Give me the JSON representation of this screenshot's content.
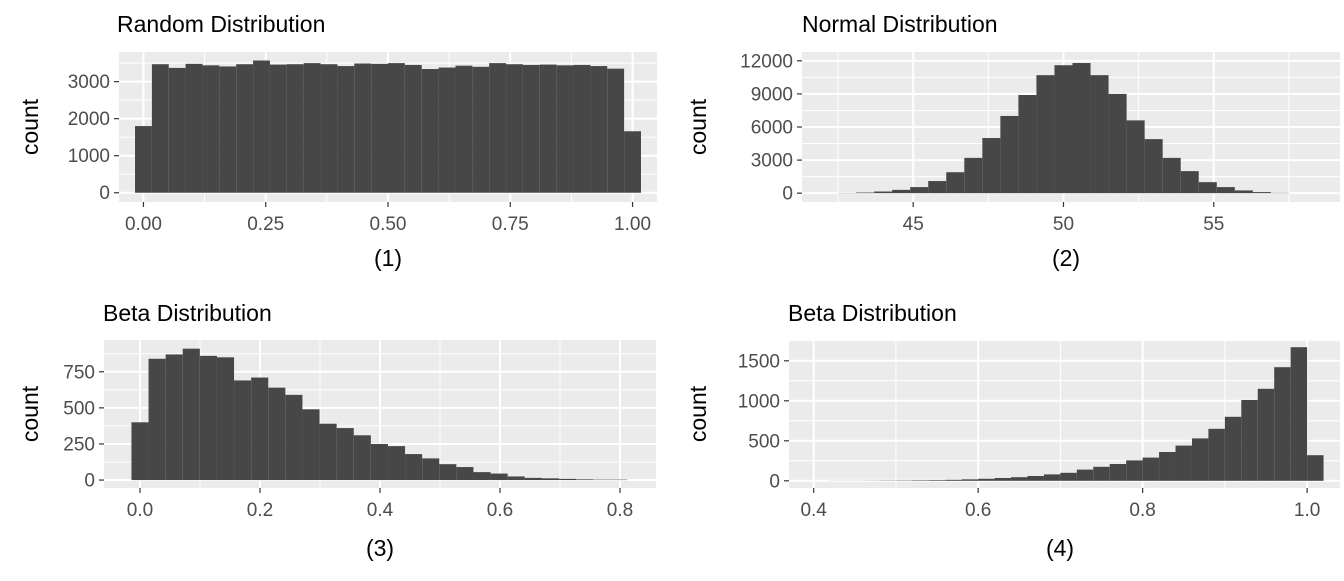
{
  "chart_data": [
    {
      "type": "bar",
      "title": "Random Distribution",
      "xlabel": "(1)",
      "ylabel": "count",
      "xlim": [
        -0.05,
        1.05
      ],
      "ylim": [
        -250,
        3800
      ],
      "xticks": [
        0.0,
        0.25,
        0.5,
        0.75,
        1.0
      ],
      "xtick_labels": [
        "0.00",
        "0.25",
        "0.50",
        "0.75",
        "1.00"
      ],
      "yticks": [
        0,
        1000,
        2000,
        3000
      ],
      "ytick_labels": [
        "0",
        "1000",
        "2000",
        "3000"
      ],
      "grid": true,
      "binwidth": 0.0345,
      "x": [
        0.0,
        0.0345,
        0.069,
        0.1034,
        0.1379,
        0.1724,
        0.2069,
        0.2414,
        0.2759,
        0.3103,
        0.3448,
        0.3793,
        0.4138,
        0.4483,
        0.4828,
        0.5172,
        0.5517,
        0.5862,
        0.6207,
        0.6552,
        0.6897,
        0.7241,
        0.7586,
        0.7931,
        0.8276,
        0.8621,
        0.8966,
        0.931,
        0.9655,
        1.0
      ],
      "values": [
        1800,
        3470,
        3370,
        3480,
        3440,
        3410,
        3470,
        3570,
        3460,
        3470,
        3500,
        3470,
        3420,
        3490,
        3480,
        3500,
        3450,
        3340,
        3380,
        3430,
        3400,
        3500,
        3470,
        3450,
        3460,
        3440,
        3450,
        3420,
        3350,
        1660
      ]
    },
    {
      "type": "bar",
      "title": "Normal Distribution",
      "xlabel": "(2)",
      "ylabel": "count",
      "xlim": [
        41.3,
        59.2
      ],
      "ylim": [
        -800,
        12800
      ],
      "xticks": [
        45,
        50,
        55
      ],
      "xtick_labels": [
        "45",
        "50",
        "55"
      ],
      "yticks": [
        0,
        3000,
        6000,
        9000,
        12000
      ],
      "ytick_labels": [
        "0",
        "3000",
        "6000",
        "9000",
        "12000"
      ],
      "grid": true,
      "binwidth": 0.6,
      "x": [
        42.8,
        43.4,
        44.0,
        44.6,
        45.2,
        45.8,
        46.4,
        47.0,
        47.6,
        48.2,
        48.8,
        49.4,
        50.0,
        50.6,
        51.2,
        51.8,
        52.4,
        53.0,
        53.6,
        54.2,
        54.8,
        55.4,
        56.0,
        56.6,
        57.2
      ],
      "values": [
        20,
        60,
        150,
        300,
        550,
        1100,
        1900,
        3200,
        5000,
        7000,
        8900,
        10700,
        11600,
        11800,
        10700,
        9000,
        6600,
        4900,
        3200,
        2000,
        1000,
        550,
        250,
        100,
        30
      ]
    },
    {
      "type": "bar",
      "title": "Beta Distribution",
      "xlabel": "(3)",
      "ylabel": "count",
      "xlim": [
        -0.06,
        0.86
      ],
      "ylim": [
        -55,
        970
      ],
      "xticks": [
        0.0,
        0.2,
        0.4,
        0.6,
        0.8
      ],
      "xtick_labels": [
        "0.0",
        "0.2",
        "0.4",
        "0.6",
        "0.8"
      ],
      "yticks": [
        0,
        250,
        500,
        750
      ],
      "ytick_labels": [
        "0",
        "250",
        "500",
        "750"
      ],
      "grid": true,
      "binwidth": 0.0285,
      "x": [
        0.0,
        0.0285,
        0.057,
        0.0855,
        0.114,
        0.1425,
        0.171,
        0.1995,
        0.228,
        0.2565,
        0.285,
        0.3135,
        0.342,
        0.3705,
        0.399,
        0.4275,
        0.456,
        0.4845,
        0.513,
        0.5415,
        0.57,
        0.5985,
        0.627,
        0.6555,
        0.684,
        0.7125,
        0.741,
        0.7695,
        0.798
      ],
      "values": [
        400,
        840,
        870,
        910,
        860,
        850,
        690,
        710,
        640,
        590,
        490,
        390,
        360,
        310,
        250,
        235,
        180,
        150,
        110,
        90,
        55,
        45,
        25,
        15,
        12,
        8,
        5,
        3,
        3
      ]
    },
    {
      "type": "bar",
      "title": "Beta Distribution",
      "xlabel": "(4)",
      "ylabel": "count",
      "xlim": [
        0.37,
        1.04
      ],
      "ylim": [
        -90,
        1760
      ],
      "xticks": [
        0.4,
        0.6,
        0.8,
        1.0
      ],
      "xtick_labels": [
        "0.4",
        "0.6",
        "0.8",
        "1.0"
      ],
      "yticks": [
        0,
        500,
        1000,
        1500
      ],
      "ytick_labels": [
        "0",
        "500",
        "1000",
        "1500"
      ],
      "grid": true,
      "binwidth": 0.02,
      "x": [
        0.43,
        0.45,
        0.47,
        0.49,
        0.51,
        0.53,
        0.55,
        0.57,
        0.59,
        0.61,
        0.63,
        0.65,
        0.67,
        0.69,
        0.71,
        0.73,
        0.75,
        0.77,
        0.79,
        0.81,
        0.83,
        0.85,
        0.87,
        0.89,
        0.91,
        0.93,
        0.95,
        0.97,
        0.99,
        1.01
      ],
      "values": [
        1,
        1,
        2,
        3,
        4,
        6,
        8,
        12,
        18,
        25,
        35,
        45,
        60,
        80,
        100,
        140,
        175,
        210,
        255,
        290,
        360,
        440,
        530,
        650,
        800,
        1010,
        1150,
        1420,
        1670,
        320
      ]
    }
  ]
}
